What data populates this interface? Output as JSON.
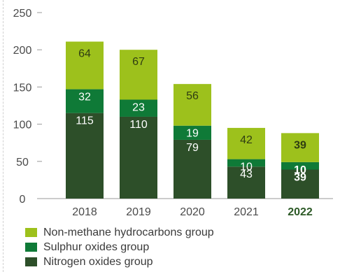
{
  "chart_data": {
    "type": "bar",
    "stacked": true,
    "categories": [
      "2018",
      "2019",
      "2020",
      "2021",
      "2022"
    ],
    "highlight_category": "2022",
    "series": [
      {
        "name": "Nitrogen oxides group",
        "values": [
          115,
          110,
          79,
          43,
          39
        ],
        "color": "#2d4f29"
      },
      {
        "name": "Sulphur oxides group",
        "values": [
          32,
          23,
          19,
          10,
          10
        ],
        "color": "#0f7a37"
      },
      {
        "name": "Non-methane hydrocarbons group",
        "values": [
          64,
          67,
          56,
          42,
          39
        ],
        "color": "#9dc11c"
      }
    ],
    "y_ticks": [
      0,
      50,
      100,
      150,
      200,
      250
    ],
    "ylim": [
      0,
      250
    ],
    "grid": false,
    "legend_position": "bottom-left"
  }
}
